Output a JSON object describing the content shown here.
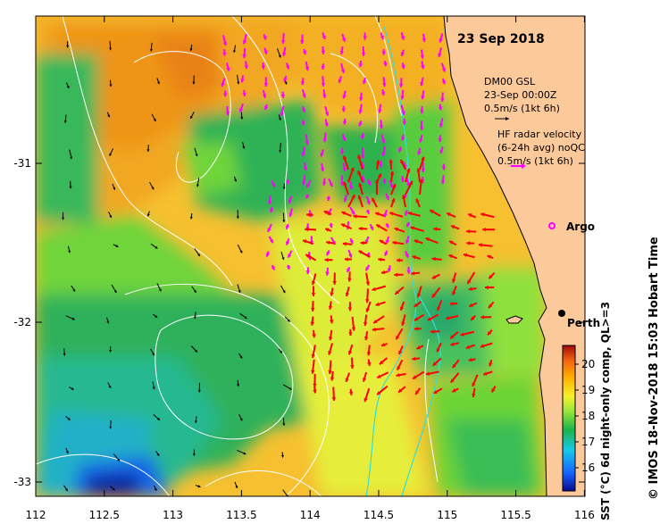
{
  "map": {
    "date_title": "23 Sep 2018",
    "lon_ticks": [
      "112",
      "112.5",
      "113",
      "113.5",
      "114",
      "114.5",
      "115",
      "115.5",
      "116"
    ],
    "lat_ticks": [
      "-31",
      "-32",
      "-33"
    ],
    "place_label": "Perth",
    "argo_label": "Argo",
    "mooring_legend": {
      "line1": "DM00 GSL",
      "line2": "23-Sep 00:00Z",
      "line3": "0.5m/s (1kt 6h)"
    },
    "hf_legend": {
      "line1": "HF radar velocity",
      "line2": "(6-24h avg) noQC",
      "line3": "0.5m/s (1kt 6h)"
    },
    "colorbar": {
      "ticks": [
        "16",
        "17",
        "18",
        "19",
        "20"
      ],
      "label": "SST (°C) 6d night-only comp, QL>=3"
    },
    "credit": "© IMOS 18-Nov-2018 15:03 Hobart Time",
    "colors": {
      "land": "#fcc99b",
      "hf_vectors": "#ff00ff",
      "strong_vectors": "#ff0000",
      "model_vectors": "#000000",
      "contours": "#ffffff",
      "cyan_contour": "#33dddd"
    }
  }
}
